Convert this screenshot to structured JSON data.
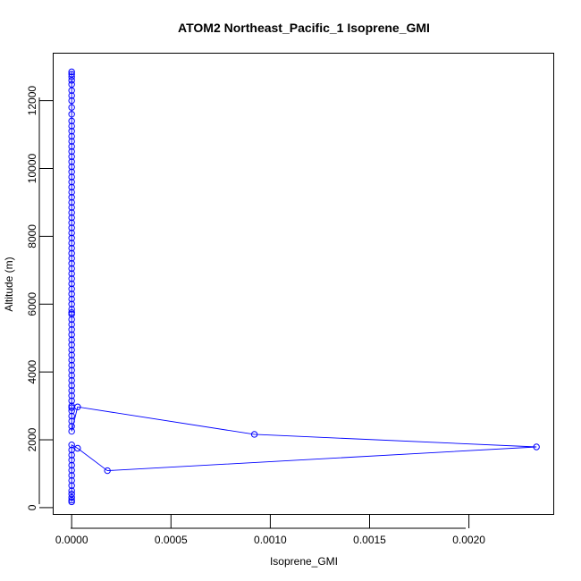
{
  "chart_data": {
    "type": "line",
    "title": "ATOM2 Northeast_Pacific_1 Isoprene_GMI",
    "xlabel": "Isoprene_GMI",
    "ylabel": "Altitude (m)",
    "xlim": [
      -9.3e-05,
      0.002427
    ],
    "ylim": [
      -200,
      13400
    ],
    "xticks": [
      0.0,
      0.0005,
      0.001,
      0.0015,
      0.002
    ],
    "xtick_labels": [
      "0.0000",
      "0.0005",
      "0.0010",
      "0.0015",
      "0.0020"
    ],
    "yticks": [
      0,
      2000,
      4000,
      6000,
      8000,
      10000,
      12000
    ],
    "ytick_labels": [
      "0",
      "2000",
      "4000",
      "6000",
      "8000",
      "10000",
      "12000"
    ],
    "color": "#0000ff",
    "grid": false,
    "legend": "none",
    "series": [
      {
        "x": [
          0,
          0,
          0,
          0,
          0,
          0,
          0,
          0,
          0,
          0,
          0,
          0,
          0,
          0,
          0,
          0,
          0,
          0,
          0,
          0,
          0,
          0,
          0,
          0,
          0,
          0,
          0,
          0,
          0,
          0,
          0,
          0,
          0,
          0,
          0,
          0,
          0,
          0,
          0,
          0,
          0,
          0,
          0,
          0,
          0,
          0,
          0,
          0,
          0,
          0,
          0,
          0,
          0,
          0,
          0,
          0,
          0,
          0,
          0,
          0,
          0,
          0,
          0,
          0,
          0,
          0,
          0,
          0,
          0,
          0,
          0,
          0,
          0,
          0,
          3e-05,
          0.00092,
          0.00234,
          0.00018,
          3e-05,
          0,
          0,
          0,
          0,
          0,
          0,
          0,
          0,
          0,
          0,
          0,
          0,
          0,
          0
        ],
        "y": [
          12850,
          12780,
          12700,
          12600,
          12480,
          12300,
          12150,
          12000,
          11800,
          11600,
          11400,
          11250,
          11100,
          10950,
          10800,
          10650,
          10500,
          10350,
          10200,
          10050,
          9900,
          9750,
          9600,
          9450,
          9300,
          9150,
          9000,
          8850,
          8700,
          8550,
          8400,
          8250,
          8100,
          7950,
          7800,
          7650,
          7500,
          7350,
          7200,
          7050,
          6900,
          6750,
          6600,
          6450,
          6300,
          6150,
          6000,
          5850,
          5750,
          5700,
          5550,
          5400,
          5250,
          5100,
          4950,
          4800,
          4650,
          4500,
          4350,
          4200,
          4050,
          3900,
          3750,
          3600,
          3450,
          3300,
          3150,
          3000,
          2950,
          2850,
          2700,
          2550,
          2400,
          2250,
          2970,
          2160,
          1790,
          1090,
          1750,
          1850,
          1700,
          1550,
          1400,
          1250,
          1100,
          950,
          800,
          650,
          500,
          400,
          300,
          220,
          170
        ]
      }
    ]
  }
}
